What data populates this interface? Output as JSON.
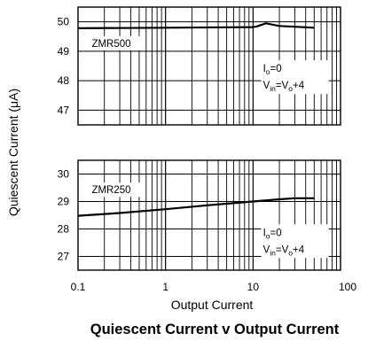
{
  "chart_data": {
    "type": "line",
    "title": "Quiescent Current v Output Current",
    "xlabel": "Output Current",
    "ylabel": "Quiescent Current (μA)",
    "x_scale": "log",
    "xlim": [
      0.1,
      100
    ],
    "x_ticks": [
      "0.1",
      "1",
      "10",
      "100"
    ],
    "grid": true,
    "panels": [
      {
        "ylim": [
          46.5,
          50.5
        ],
        "y_ticks": [
          47,
          48,
          49,
          50
        ],
        "label": "ZMR500",
        "annotation": {
          "io": "I",
          "io_sub": "o",
          "io_rest": "=0",
          "vin": "V",
          "vin_sub": "in",
          "vin_eq": "=V",
          "vo_sub": "o",
          "vin_rest": "+4"
        },
        "series": [
          {
            "x": [
              0.1,
              1,
              10,
              11,
              14,
              20,
              50
            ],
            "y": [
              49.78,
              49.8,
              49.82,
              49.84,
              49.95,
              49.86,
              49.8
            ]
          }
        ]
      },
      {
        "ylim": [
          26.5,
          30.5
        ],
        "y_ticks": [
          27,
          28,
          29,
          30
        ],
        "label": "ZMR250",
        "annotation": {
          "io": "I",
          "io_sub": "o",
          "io_rest": "=0",
          "vin": "V",
          "vin_sub": "in",
          "vin_eq": "=V",
          "vo_sub": "o",
          "vin_rest": "+4"
        },
        "series": [
          {
            "x": [
              0.1,
              0.3,
              1,
              3,
              10,
              20,
              30,
              50
            ],
            "y": [
              28.48,
              28.58,
              28.72,
              28.86,
              29.0,
              29.08,
              29.12,
              29.12
            ]
          }
        ]
      }
    ]
  }
}
